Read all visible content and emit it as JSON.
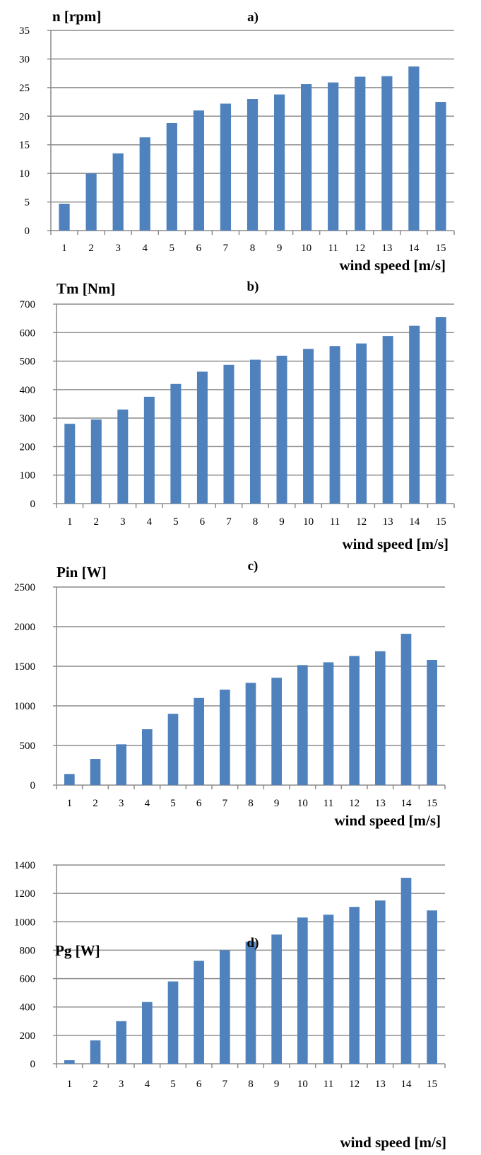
{
  "chart_data": [
    {
      "type": "bar",
      "panel_label": "a)",
      "ylabel": "n [rpm]",
      "xlabel": "wind speed [m/s]",
      "categories": [
        "1",
        "2",
        "3",
        "4",
        "5",
        "6",
        "7",
        "8",
        "9",
        "10",
        "11",
        "12",
        "13",
        "14",
        "15"
      ],
      "values": [
        4.7,
        10.0,
        13.5,
        16.3,
        18.8,
        21.0,
        22.2,
        23.0,
        23.8,
        25.6,
        25.9,
        26.9,
        27.0,
        28.7,
        22.5
      ],
      "ylim": [
        0,
        35
      ],
      "yticks": [
        0,
        5,
        10,
        15,
        20,
        25,
        30,
        35
      ],
      "grid": true,
      "bar_color": "#4f81bd"
    },
    {
      "type": "bar",
      "panel_label": "b)",
      "ylabel": "Tm [Nm]",
      "xlabel": "wind speed [m/s]",
      "categories": [
        "1",
        "2",
        "3",
        "4",
        "5",
        "6",
        "7",
        "8",
        "9",
        "10",
        "11",
        "12",
        "13",
        "14",
        "15"
      ],
      "values": [
        280,
        295,
        330,
        375,
        420,
        463,
        487,
        505,
        519,
        543,
        553,
        562,
        588,
        624,
        655
      ],
      "ylim": [
        0,
        700
      ],
      "yticks": [
        0,
        100,
        200,
        300,
        400,
        500,
        600,
        700
      ],
      "grid": true,
      "bar_color": "#4f81bd"
    },
    {
      "type": "bar",
      "panel_label": "c)",
      "ylabel": "Pin [W]",
      "xlabel": "wind speed [m/s]",
      "categories": [
        "1",
        "2",
        "3",
        "4",
        "5",
        "6",
        "7",
        "8",
        "9",
        "10",
        "11",
        "12",
        "13",
        "14",
        "15"
      ],
      "values": [
        140,
        330,
        515,
        705,
        900,
        1100,
        1205,
        1290,
        1355,
        1515,
        1550,
        1630,
        1690,
        1910,
        1580
      ],
      "ylim": [
        0,
        2500
      ],
      "yticks": [
        0,
        500,
        1000,
        1500,
        2000,
        2500
      ],
      "grid": true,
      "bar_color": "#4f81bd"
    },
    {
      "type": "bar",
      "panel_label": "d)",
      "ylabel": "Pg [W]",
      "xlabel": "wind speed [m/s]",
      "categories": [
        "1",
        "2",
        "3",
        "4",
        "5",
        "6",
        "7",
        "8",
        "9",
        "10",
        "11",
        "12",
        "13",
        "14",
        "15"
      ],
      "values": [
        25,
        165,
        300,
        435,
        580,
        725,
        800,
        860,
        910,
        1030,
        1050,
        1105,
        1150,
        1310,
        1080
      ],
      "ylim": [
        0,
        1400
      ],
      "yticks": [
        0,
        200,
        400,
        600,
        800,
        1000,
        1200,
        1400
      ],
      "grid": true,
      "bar_color": "#4f81bd"
    }
  ]
}
